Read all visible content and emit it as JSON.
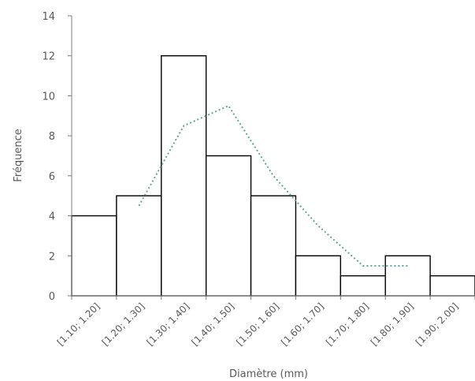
{
  "chart_data": {
    "type": "bar",
    "subtype": "histogram",
    "categories": [
      "[1.10; 1.20]",
      "[1.20; 1.30]",
      "[1.30; 1.40]",
      "[1.40; 1.50]",
      "[1.50; 1.60]",
      "[1.60; 1.70]",
      "[1.70; 1.80]",
      "[1.80; 1.90]",
      "[1.90; 2.00]"
    ],
    "series": [
      {
        "values": [
          4,
          5,
          12,
          7,
          5,
          2,
          1,
          2,
          1
        ]
      }
    ],
    "trendline": {
      "style": "dotted",
      "color": "#5fa89a",
      "x_positions": [
        1.5,
        2.5,
        3.5,
        4.5,
        5.5,
        6.5,
        7.5
      ],
      "values": [
        4.5,
        8.5,
        9.5,
        6.0,
        3.5,
        1.5,
        1.5
      ]
    },
    "xlabel": "Diamètre (mm)",
    "ylabel": "Fréquence",
    "ylim": [
      0,
      14
    ],
    "yticks": [
      0,
      2,
      4,
      6,
      8,
      10,
      12,
      14
    ],
    "grid": false,
    "legend": "none"
  }
}
